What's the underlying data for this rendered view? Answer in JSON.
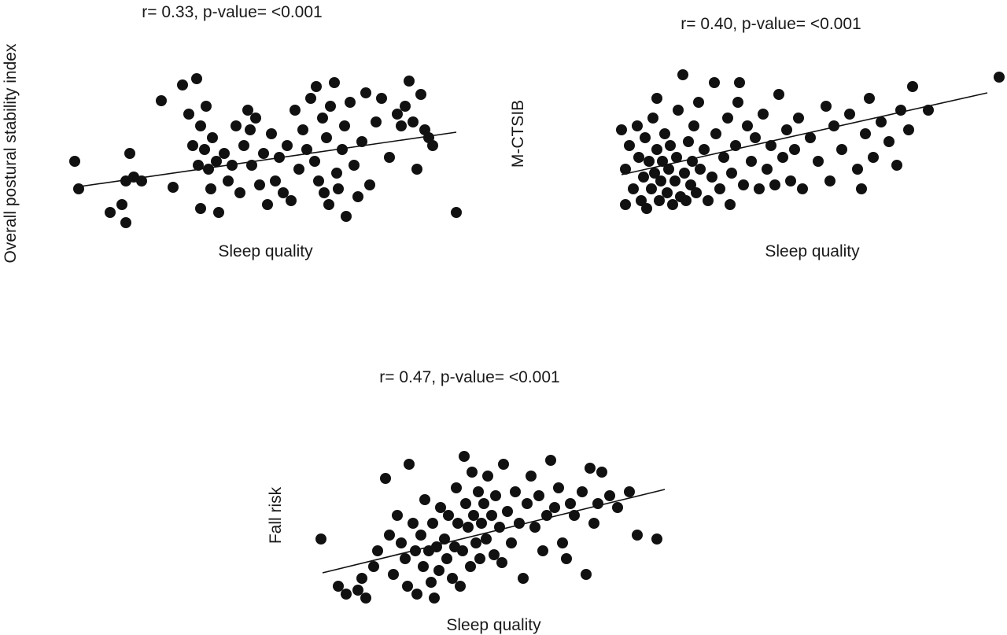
{
  "page": {
    "background": "#ffffff",
    "ink_color": "#111111"
  },
  "chart_data": [
    {
      "type": "scatter",
      "title": "r= 0.33, p-value= <0.001",
      "xlabel": "Sleep quality",
      "ylabel": "Overall postural stability index",
      "r": 0.33,
      "p_value": "<0.001",
      "grid": false,
      "axes_visible": false,
      "legend": false,
      "point_color": "#111111",
      "point_radius": 7,
      "units": "plot-relative px, y increases downward",
      "view": [
        515,
        210
      ],
      "trendline": [
        [
          15,
          150
        ],
        [
          500,
          80
        ]
      ],
      "points": [
        [
          15,
          117
        ],
        [
          20,
          152
        ],
        [
          60,
          182
        ],
        [
          75,
          172
        ],
        [
          80,
          142
        ],
        [
          80,
          195
        ],
        [
          85,
          107
        ],
        [
          90,
          137
        ],
        [
          100,
          142
        ],
        [
          125,
          40
        ],
        [
          140,
          150
        ],
        [
          152,
          20
        ],
        [
          160,
          57
        ],
        [
          165,
          97
        ],
        [
          170,
          12
        ],
        [
          172,
          122
        ],
        [
          175,
          72
        ],
        [
          175,
          177
        ],
        [
          180,
          102
        ],
        [
          182,
          47
        ],
        [
          185,
          127
        ],
        [
          188,
          152
        ],
        [
          190,
          87
        ],
        [
          195,
          117
        ],
        [
          198,
          182
        ],
        [
          205,
          107
        ],
        [
          210,
          142
        ],
        [
          215,
          122
        ],
        [
          220,
          72
        ],
        [
          225,
          157
        ],
        [
          230,
          97
        ],
        [
          235,
          52
        ],
        [
          238,
          77
        ],
        [
          240,
          122
        ],
        [
          245,
          62
        ],
        [
          250,
          147
        ],
        [
          255,
          107
        ],
        [
          260,
          172
        ],
        [
          265,
          82
        ],
        [
          270,
          142
        ],
        [
          275,
          112
        ],
        [
          280,
          157
        ],
        [
          285,
          97
        ],
        [
          290,
          167
        ],
        [
          295,
          52
        ],
        [
          300,
          127
        ],
        [
          305,
          77
        ],
        [
          310,
          102
        ],
        [
          315,
          37
        ],
        [
          320,
          117
        ],
        [
          322,
          22
        ],
        [
          325,
          142
        ],
        [
          330,
          62
        ],
        [
          332,
          157
        ],
        [
          335,
          87
        ],
        [
          338,
          172
        ],
        [
          340,
          47
        ],
        [
          345,
          17
        ],
        [
          348,
          132
        ],
        [
          350,
          152
        ],
        [
          355,
          102
        ],
        [
          358,
          72
        ],
        [
          360,
          187
        ],
        [
          365,
          42
        ],
        [
          370,
          122
        ],
        [
          375,
          162
        ],
        [
          380,
          92
        ],
        [
          385,
          30
        ],
        [
          390,
          147
        ],
        [
          398,
          67
        ],
        [
          405,
          37
        ],
        [
          415,
          112
        ],
        [
          425,
          57
        ],
        [
          430,
          72
        ],
        [
          435,
          47
        ],
        [
          440,
          15
        ],
        [
          445,
          67
        ],
        [
          450,
          127
        ],
        [
          455,
          32
        ],
        [
          460,
          77
        ],
        [
          465,
          87
        ],
        [
          470,
          97
        ],
        [
          500,
          182
        ]
      ]
    },
    {
      "type": "scatter",
      "title": "r= 0.40, p-value= <0.001",
      "xlabel": "Sleep quality",
      "ylabel": "M-CTSIB",
      "r": 0.4,
      "p_value": "<0.001",
      "grid": false,
      "axes_visible": false,
      "legend": false,
      "point_color": "#111111",
      "point_radius": 7,
      "units": "plot-relative px, y increases downward",
      "view": [
        495,
        190
      ],
      "trendline": [
        [
          5,
          137
        ],
        [
          470,
          33
        ]
      ],
      "points": [
        [
          5,
          80
        ],
        [
          10,
          130
        ],
        [
          10,
          175
        ],
        [
          15,
          100
        ],
        [
          20,
          155
        ],
        [
          25,
          75
        ],
        [
          27,
          115
        ],
        [
          30,
          170
        ],
        [
          33,
          140
        ],
        [
          35,
          90
        ],
        [
          37,
          180
        ],
        [
          40,
          120
        ],
        [
          43,
          155
        ],
        [
          45,
          65
        ],
        [
          47,
          135
        ],
        [
          50,
          105
        ],
        [
          50,
          40
        ],
        [
          53,
          170
        ],
        [
          55,
          145
        ],
        [
          57,
          120
        ],
        [
          60,
          85
        ],
        [
          63,
          160
        ],
        [
          65,
          130
        ],
        [
          67,
          100
        ],
        [
          70,
          175
        ],
        [
          73,
          145
        ],
        [
          75,
          115
        ],
        [
          77,
          55
        ],
        [
          80,
          165
        ],
        [
          83,
          10
        ],
        [
          85,
          135
        ],
        [
          87,
          170
        ],
        [
          90,
          95
        ],
        [
          93,
          150
        ],
        [
          95,
          120
        ],
        [
          97,
          75
        ],
        [
          100,
          160
        ],
        [
          103,
          45
        ],
        [
          105,
          130
        ],
        [
          110,
          105
        ],
        [
          115,
          170
        ],
        [
          120,
          140
        ],
        [
          123,
          20
        ],
        [
          125,
          85
        ],
        [
          130,
          155
        ],
        [
          135,
          115
        ],
        [
          140,
          65
        ],
        [
          143,
          175
        ],
        [
          145,
          135
        ],
        [
          150,
          100
        ],
        [
          153,
          45
        ],
        [
          155,
          20
        ],
        [
          160,
          150
        ],
        [
          165,
          75
        ],
        [
          170,
          120
        ],
        [
          175,
          90
        ],
        [
          180,
          155
        ],
        [
          185,
          60
        ],
        [
          190,
          130
        ],
        [
          195,
          100
        ],
        [
          200,
          150
        ],
        [
          205,
          35
        ],
        [
          210,
          115
        ],
        [
          215,
          80
        ],
        [
          220,
          145
        ],
        [
          225,
          105
        ],
        [
          230,
          65
        ],
        [
          235,
          155
        ],
        [
          245,
          90
        ],
        [
          255,
          120
        ],
        [
          265,
          50
        ],
        [
          270,
          145
        ],
        [
          275,
          75
        ],
        [
          285,
          105
        ],
        [
          295,
          60
        ],
        [
          305,
          130
        ],
        [
          310,
          155
        ],
        [
          315,
          85
        ],
        [
          320,
          40
        ],
        [
          325,
          115
        ],
        [
          335,
          70
        ],
        [
          345,
          95
        ],
        [
          355,
          125
        ],
        [
          360,
          55
        ],
        [
          370,
          80
        ],
        [
          375,
          25
        ],
        [
          395,
          55
        ],
        [
          485,
          13
        ]
      ]
    },
    {
      "type": "scatter",
      "title": "r= 0.47, p-value= <0.001",
      "xlabel": "Sleep quality",
      "ylabel": "Fall risk",
      "r": 0.47,
      "p_value": "<0.001",
      "grid": false,
      "axes_visible": false,
      "legend": false,
      "point_color": "#111111",
      "point_radius": 7,
      "units": "plot-relative px, y increases downward",
      "view": [
        455,
        200
      ],
      "trendline": [
        [
          10,
          158
        ],
        [
          445,
          52
        ]
      ],
      "points": [
        [
          8,
          115
        ],
        [
          30,
          175
        ],
        [
          40,
          185
        ],
        [
          55,
          180
        ],
        [
          60,
          165
        ],
        [
          65,
          190
        ],
        [
          75,
          150
        ],
        [
          80,
          130
        ],
        [
          90,
          38
        ],
        [
          95,
          110
        ],
        [
          100,
          160
        ],
        [
          105,
          85
        ],
        [
          110,
          120
        ],
        [
          115,
          140
        ],
        [
          118,
          175
        ],
        [
          120,
          20
        ],
        [
          125,
          95
        ],
        [
          128,
          130
        ],
        [
          130,
          185
        ],
        [
          135,
          110
        ],
        [
          138,
          150
        ],
        [
          140,
          65
        ],
        [
          145,
          130
        ],
        [
          148,
          170
        ],
        [
          150,
          95
        ],
        [
          152,
          190
        ],
        [
          155,
          125
        ],
        [
          158,
          155
        ],
        [
          160,
          75
        ],
        [
          165,
          115
        ],
        [
          168,
          140
        ],
        [
          170,
          85
        ],
        [
          175,
          165
        ],
        [
          178,
          125
        ],
        [
          180,
          50
        ],
        [
          182,
          95
        ],
        [
          185,
          175
        ],
        [
          188,
          130
        ],
        [
          190,
          10
        ],
        [
          192,
          70
        ],
        [
          195,
          100
        ],
        [
          198,
          150
        ],
        [
          200,
          30
        ],
        [
          202,
          85
        ],
        [
          205,
          120
        ],
        [
          208,
          55
        ],
        [
          210,
          140
        ],
        [
          212,
          95
        ],
        [
          215,
          70
        ],
        [
          218,
          115
        ],
        [
          220,
          35
        ],
        [
          225,
          85
        ],
        [
          228,
          135
        ],
        [
          230,
          60
        ],
        [
          235,
          100
        ],
        [
          238,
          145
        ],
        [
          240,
          20
        ],
        [
          245,
          80
        ],
        [
          250,
          120
        ],
        [
          255,
          55
        ],
        [
          260,
          95
        ],
        [
          265,
          165
        ],
        [
          270,
          70
        ],
        [
          275,
          35
        ],
        [
          280,
          100
        ],
        [
          285,
          60
        ],
        [
          290,
          130
        ],
        [
          295,
          85
        ],
        [
          300,
          15
        ],
        [
          305,
          75
        ],
        [
          310,
          50
        ],
        [
          315,
          120
        ],
        [
          320,
          140
        ],
        [
          325,
          70
        ],
        [
          330,
          85
        ],
        [
          340,
          55
        ],
        [
          345,
          160
        ],
        [
          350,
          25
        ],
        [
          355,
          95
        ],
        [
          360,
          70
        ],
        [
          365,
          30
        ],
        [
          375,
          60
        ],
        [
          385,
          75
        ],
        [
          400,
          55
        ],
        [
          410,
          110
        ],
        [
          435,
          115
        ]
      ]
    }
  ]
}
